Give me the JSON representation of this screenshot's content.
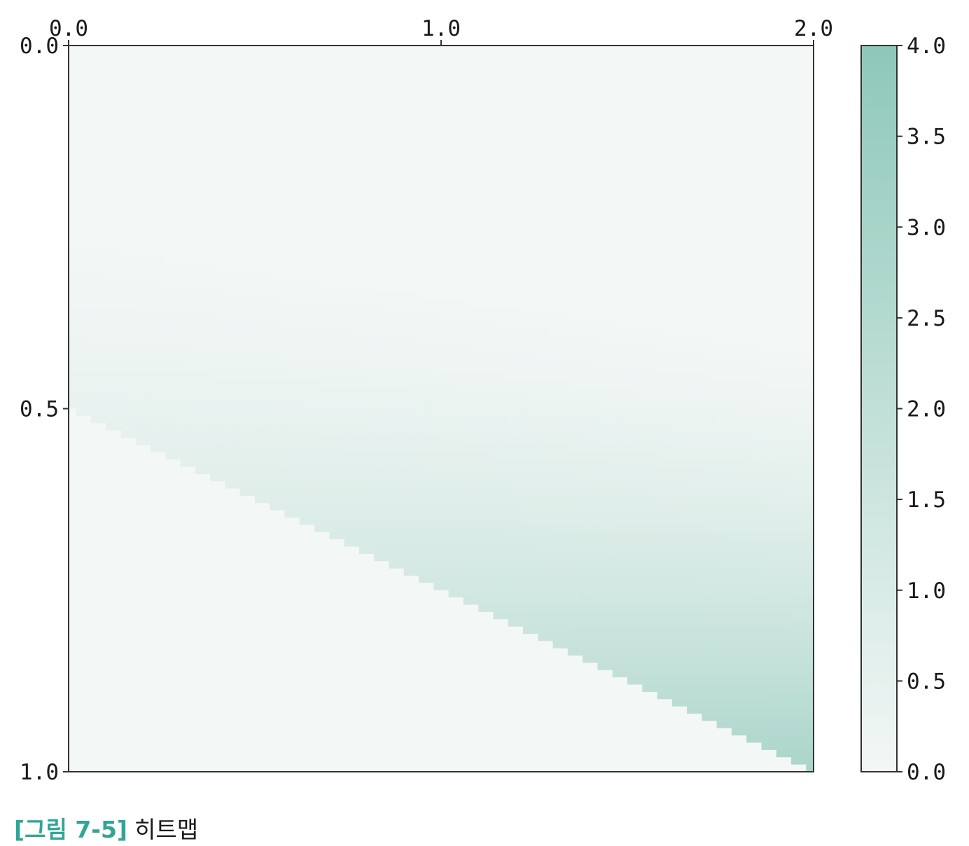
{
  "chart_data": {
    "type": "heatmap",
    "title": "",
    "xlabel": "",
    "ylabel": "",
    "x_range": [
      0.0,
      2.0
    ],
    "y_range": [
      0.0,
      1.0
    ],
    "x_ticks": [
      "0.0",
      "1.0",
      "2.0"
    ],
    "y_ticks": [
      "0.0",
      "0.5",
      "1.0"
    ],
    "x_axis_position": "top",
    "y_axis_inverted": true,
    "grid": false,
    "colorbar": {
      "range": [
        0.0,
        4.0
      ],
      "ticks": [
        "0.0",
        "0.5",
        "1.0",
        "1.5",
        "2.0",
        "2.5",
        "3.0",
        "3.5",
        "4.0"
      ],
      "color_low": "#f3f7f6",
      "color_high": "#8ec8b9",
      "position": "right"
    },
    "regions": [
      {
        "name": "lower-left triangle (y > 0.5 + x/4)",
        "value": 0.0
      },
      {
        "name": "upper band",
        "value_min": 0.0,
        "value_max": 4.0,
        "max_at": [
          2.0,
          1.0
        ]
      }
    ]
  },
  "caption": {
    "label": "[그림 7-5]",
    "text": "히트맵"
  }
}
